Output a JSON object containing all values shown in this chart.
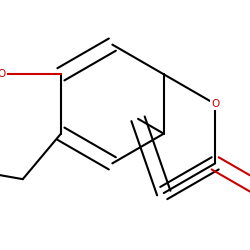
{
  "background": "#ffffff",
  "bond_color": "#000000",
  "atom_color_C": "#000000",
  "atom_color_O": "#cc0000",
  "atom_color_H": "#000000",
  "lw": 1.5,
  "figsize": [
    2.5,
    2.5
  ],
  "dpi": 100
}
